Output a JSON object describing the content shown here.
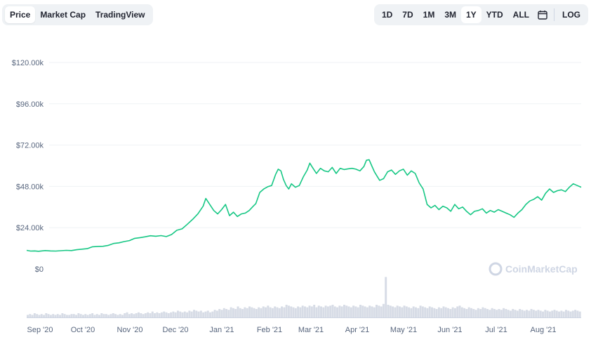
{
  "tabs": [
    {
      "label": "Price",
      "active": true
    },
    {
      "label": "Market Cap",
      "active": false
    },
    {
      "label": "TradingView",
      "active": false
    }
  ],
  "ranges": [
    {
      "label": "1D",
      "active": false
    },
    {
      "label": "7D",
      "active": false
    },
    {
      "label": "1M",
      "active": false
    },
    {
      "label": "3M",
      "active": false
    },
    {
      "label": "1Y",
      "active": true
    },
    {
      "label": "YTD",
      "active": false
    },
    {
      "label": "ALL",
      "active": false
    }
  ],
  "calendar_icon": "calendar-icon",
  "log_label": "LOG",
  "watermark": "CoinMarketCap",
  "colors": {
    "line": "#16c784",
    "grid": "#eff2f5",
    "volume": "#d7dce6",
    "text_muted": "#58667e"
  },
  "chart_data": {
    "type": "line",
    "yticks": [
      "$0",
      "$24.00k",
      "$48.00k",
      "$72.00k",
      "$96.00k",
      "$120.00k"
    ],
    "ylim": [
      0,
      120000
    ],
    "xticks": [
      "Sep '20",
      "Oct '20",
      "Nov '20",
      "Dec '20",
      "Jan '21",
      "Feb '21",
      "Mar '21",
      "Apr '21",
      "May '21",
      "Jun '21",
      "Jul '21",
      "Aug '21"
    ],
    "series": [
      {
        "values": [
          [
            0,
            10800
          ],
          [
            3,
            10400
          ],
          [
            6,
            10500
          ],
          [
            9,
            10300
          ],
          [
            14,
            10700
          ],
          [
            18,
            10500
          ],
          [
            22,
            10400
          ],
          [
            26,
            10600
          ],
          [
            30,
            10800
          ],
          [
            34,
            10700
          ],
          [
            38,
            11200
          ],
          [
            42,
            11500
          ],
          [
            46,
            11800
          ],
          [
            50,
            12900
          ],
          [
            54,
            13100
          ],
          [
            58,
            13200
          ],
          [
            62,
            13700
          ],
          [
            66,
            14800
          ],
          [
            70,
            15200
          ],
          [
            74,
            15900
          ],
          [
            78,
            16500
          ],
          [
            82,
            17800
          ],
          [
            86,
            18200
          ],
          [
            90,
            18700
          ],
          [
            94,
            19300
          ],
          [
            98,
            19000
          ],
          [
            102,
            19400
          ],
          [
            106,
            18800
          ],
          [
            110,
            20000
          ],
          [
            114,
            22500
          ],
          [
            118,
            23300
          ],
          [
            122,
            26000
          ],
          [
            126,
            28800
          ],
          [
            130,
            32000
          ],
          [
            134,
            36500
          ],
          [
            136,
            41000
          ],
          [
            139,
            37500
          ],
          [
            142,
            34000
          ],
          [
            145,
            32000
          ],
          [
            148,
            34500
          ],
          [
            151,
            37500
          ],
          [
            154,
            31000
          ],
          [
            157,
            33000
          ],
          [
            160,
            30500
          ],
          [
            163,
            32000
          ],
          [
            166,
            32500
          ],
          [
            169,
            34000
          ],
          [
            172,
            36500
          ],
          [
            174,
            38000
          ],
          [
            177,
            44500
          ],
          [
            180,
            46500
          ],
          [
            183,
            47800
          ],
          [
            186,
            48500
          ],
          [
            189,
            55000
          ],
          [
            191,
            58000
          ],
          [
            193,
            57000
          ],
          [
            195,
            52000
          ],
          [
            197,
            48500
          ],
          [
            199,
            46500
          ],
          [
            201,
            49500
          ],
          [
            204,
            47500
          ],
          [
            207,
            48500
          ],
          [
            210,
            53500
          ],
          [
            213,
            57500
          ],
          [
            215,
            61500
          ],
          [
            217,
            59000
          ],
          [
            220,
            55500
          ],
          [
            223,
            58500
          ],
          [
            226,
            57000
          ],
          [
            229,
            56500
          ],
          [
            232,
            59000
          ],
          [
            235,
            55500
          ],
          [
            238,
            58500
          ],
          [
            241,
            57800
          ],
          [
            244,
            58200
          ],
          [
            247,
            58500
          ],
          [
            250,
            58000
          ],
          [
            253,
            57000
          ],
          [
            256,
            59500
          ],
          [
            258,
            63200
          ],
          [
            260,
            63500
          ],
          [
            262,
            60000
          ],
          [
            264,
            56500
          ],
          [
            266,
            54000
          ],
          [
            268,
            51500
          ],
          [
            271,
            52500
          ],
          [
            274,
            56500
          ],
          [
            277,
            57500
          ],
          [
            280,
            55000
          ],
          [
            283,
            57000
          ],
          [
            286,
            58000
          ],
          [
            289,
            54500
          ],
          [
            292,
            57000
          ],
          [
            295,
            55500
          ],
          [
            298,
            50000
          ],
          [
            301,
            46500
          ],
          [
            304,
            37500
          ],
          [
            307,
            35500
          ],
          [
            310,
            37000
          ],
          [
            313,
            34500
          ],
          [
            316,
            36500
          ],
          [
            319,
            35500
          ],
          [
            322,
            33500
          ],
          [
            325,
            37500
          ],
          [
            328,
            35000
          ],
          [
            331,
            36000
          ],
          [
            334,
            33500
          ],
          [
            337,
            31500
          ],
          [
            340,
            33500
          ],
          [
            343,
            34000
          ],
          [
            346,
            35000
          ],
          [
            349,
            32500
          ],
          [
            352,
            34000
          ],
          [
            355,
            33000
          ],
          [
            358,
            34500
          ],
          [
            361,
            33500
          ],
          [
            364,
            32500
          ],
          [
            367,
            31500
          ],
          [
            370,
            30000
          ],
          [
            373,
            32500
          ],
          [
            376,
            34500
          ],
          [
            379,
            37500
          ],
          [
            382,
            39500
          ],
          [
            385,
            40500
          ],
          [
            388,
            42000
          ],
          [
            391,
            40000
          ],
          [
            394,
            44000
          ],
          [
            397,
            46500
          ],
          [
            400,
            44500
          ],
          [
            403,
            45500
          ],
          [
            406,
            46000
          ],
          [
            409,
            45000
          ],
          [
            412,
            47500
          ],
          [
            415,
            49500
          ],
          [
            418,
            48500
          ],
          [
            421,
            47500
          ]
        ]
      }
    ],
    "volume": [
      3,
      4,
      3,
      5,
      4,
      3,
      4,
      3,
      5,
      4,
      3,
      4,
      3,
      4,
      3,
      5,
      4,
      3,
      3,
      4,
      4,
      3,
      5,
      4,
      3,
      4,
      3,
      4,
      5,
      3,
      4,
      3,
      5,
      4,
      4,
      3,
      4,
      5,
      4,
      3,
      4,
      3,
      5,
      6,
      4,
      5,
      4,
      5,
      6,
      5,
      4,
      5,
      6,
      5,
      7,
      5,
      6,
      5,
      6,
      7,
      6,
      5,
      6,
      7,
      6,
      8,
      7,
      6,
      7,
      6,
      8,
      7,
      9,
      8,
      7,
      8,
      6,
      7,
      8,
      6,
      7,
      9,
      8,
      10,
      9,
      11,
      10,
      9,
      12,
      11,
      10,
      13,
      11,
      10,
      12,
      11,
      13,
      12,
      11,
      10,
      12,
      11,
      13,
      12,
      14,
      12,
      11,
      13,
      12,
      11,
      13,
      12,
      15,
      14,
      13,
      12,
      11,
      13,
      12,
      14,
      13,
      12,
      14,
      13,
      15,
      12,
      14,
      13,
      12,
      14,
      13,
      14,
      15,
      13,
      12,
      14,
      13,
      15,
      14,
      13,
      12,
      14,
      13,
      12,
      15,
      14,
      13,
      12,
      14,
      13,
      12,
      15,
      14,
      13,
      16,
      48,
      15,
      14,
      13,
      12,
      14,
      13,
      12,
      14,
      13,
      12,
      11,
      13,
      12,
      11,
      14,
      13,
      12,
      11,
      13,
      12,
      11,
      10,
      12,
      11,
      13,
      12,
      11,
      10,
      12,
      11,
      13,
      14,
      12,
      11,
      10,
      12,
      11,
      10,
      9,
      11,
      10,
      12,
      11,
      10,
      9,
      11,
      10,
      9,
      10,
      9,
      11,
      10,
      9,
      8,
      10,
      9,
      8,
      10,
      9,
      8,
      9,
      8,
      10,
      9,
      8,
      9,
      8,
      7,
      9,
      8,
      7,
      8,
      9,
      8,
      7,
      8,
      7,
      9,
      8,
      7,
      8,
      9,
      8,
      7
    ]
  }
}
